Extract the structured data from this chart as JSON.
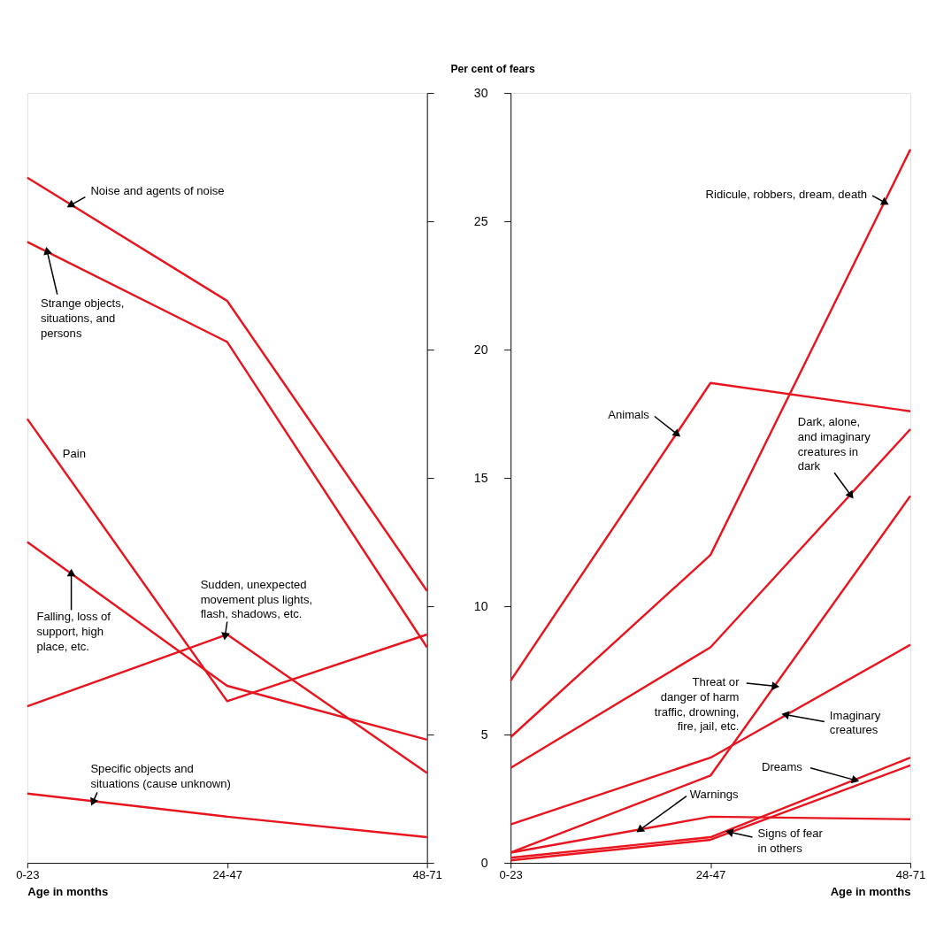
{
  "chart_data": [
    {
      "type": "line",
      "categories": [
        "0-23",
        "24-47",
        "48-71"
      ],
      "xlabel": "Age in months",
      "ylim": [
        0,
        30
      ],
      "yticks": [
        0,
        5,
        10,
        15,
        20,
        25,
        30
      ],
      "tick_labels": "x",
      "line_style": "solid",
      "series": [
        {
          "name": "Noise and agents of noise",
          "color": "#e8141e",
          "values": [
            26.7,
            21.9,
            10.6
          ]
        },
        {
          "name": "Strange objects, situations, and persons",
          "color": "#e8141e",
          "values": [
            24.2,
            20.3,
            8.4
          ]
        },
        {
          "name": "Pain",
          "color": "#e8141e",
          "values": [
            17.3,
            6.3,
            8.9
          ]
        },
        {
          "name": "Falling, loss of support, high place, etc.",
          "color": "#e8141e",
          "values": [
            12.5,
            6.9,
            4.8
          ]
        },
        {
          "name": "Sudden, unexpected movement plus lights, flash, shadows, etc.",
          "color": "#e8141e",
          "values": [
            6.1,
            8.9,
            3.5
          ]
        },
        {
          "name": "Specific objects and situations (cause unknown)",
          "color": "#e8141e",
          "values": [
            2.7,
            1.8,
            1.0
          ]
        }
      ]
    },
    {
      "type": "line",
      "categories": [
        "0-23",
        "24-47",
        "48-71"
      ],
      "xlabel": "Age in months",
      "ylabel": "Per cent of fears",
      "ylim": [
        0,
        30
      ],
      "yticks": [
        0,
        5,
        10,
        15,
        20,
        25,
        30
      ],
      "line_style": "solid",
      "series": [
        {
          "name": "Animals",
          "color": "#e8141e",
          "values": [
            7.1,
            18.7,
            17.6
          ]
        },
        {
          "name": "Ridicule, robbers, dream, death",
          "color": "#e8141e",
          "values": [
            4.9,
            12.0,
            27.8
          ]
        },
        {
          "name": "Dark, alone, and imaginary creatures in dark",
          "color": "#e8141e",
          "values": [
            3.7,
            8.4,
            16.9
          ]
        },
        {
          "name": "Threat or danger of harm traffic, drowning, fire, jail, etc.",
          "color": "#e8141e",
          "values": [
            0.4,
            3.4,
            14.3
          ]
        },
        {
          "name": "Imaginary creatures",
          "color": "#e8141e",
          "values": [
            1.5,
            4.1,
            8.5
          ]
        },
        {
          "name": "Dreams",
          "color": "#e8141e",
          "values": [
            0.2,
            1.0,
            4.1
          ]
        },
        {
          "name": "Warnings",
          "color": "#e8141e",
          "values": [
            0.4,
            1.8,
            1.7
          ]
        },
        {
          "name": "Signs of fear in others",
          "color": "#e8141e",
          "values": [
            0.1,
            0.9,
            3.8
          ]
        }
      ]
    }
  ]
}
